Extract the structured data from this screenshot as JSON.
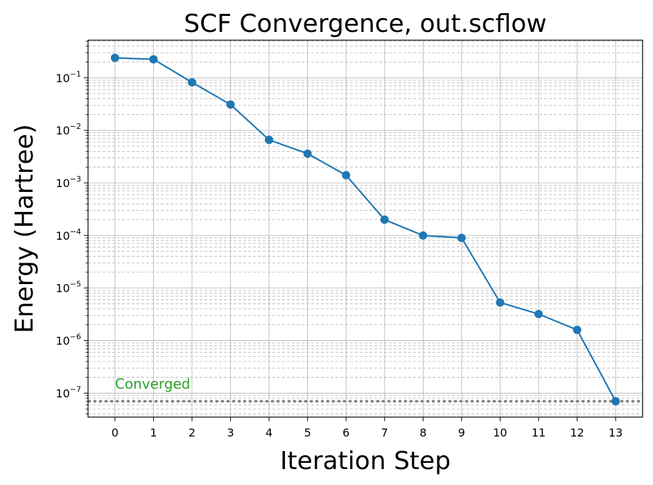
{
  "chart_data": {
    "type": "line",
    "title": "SCF Convergence, out.scflow",
    "xlabel": "Iteration Step",
    "ylabel": "Energy (Hartree)",
    "yscale": "log",
    "xlim": [
      -0.7,
      13.7
    ],
    "ylim": [
      3.5e-08,
      0.52
    ],
    "x": [
      0,
      1,
      2,
      3,
      4,
      5,
      6,
      7,
      8,
      9,
      10,
      11,
      12,
      13
    ],
    "x_ticks": [
      "0",
      "1",
      "2",
      "3",
      "4",
      "5",
      "6",
      "7",
      "8",
      "9",
      "10",
      "11",
      "12",
      "13"
    ],
    "y_ticks": [
      {
        "value": 0.1,
        "base": "10",
        "exp": "−1"
      },
      {
        "value": 0.01,
        "base": "10",
        "exp": "−2"
      },
      {
        "value": 0.001,
        "base": "10",
        "exp": "−3"
      },
      {
        "value": 0.0001,
        "base": "10",
        "exp": "−4"
      },
      {
        "value": 1e-05,
        "base": "10",
        "exp": "−5"
      },
      {
        "value": 1e-06,
        "base": "10",
        "exp": "−6"
      },
      {
        "value": 1e-07,
        "base": "10",
        "exp": "−7"
      }
    ],
    "series": [
      {
        "values": [
          0.24,
          0.225,
          0.082,
          0.031,
          0.0066,
          0.0036,
          0.0014,
          0.0002,
          0.0001,
          9e-05,
          5.3e-06,
          3.2e-06,
          1.6e-06,
          7e-08
        ],
        "color": "#1f77b4"
      }
    ],
    "threshold": {
      "value": 7e-08,
      "color": "#808080",
      "style": "dotted"
    },
    "annotation": {
      "text": "Converged",
      "x": 0,
      "y": 1.5e-07,
      "color": "#2ca02c"
    },
    "grid": true
  }
}
